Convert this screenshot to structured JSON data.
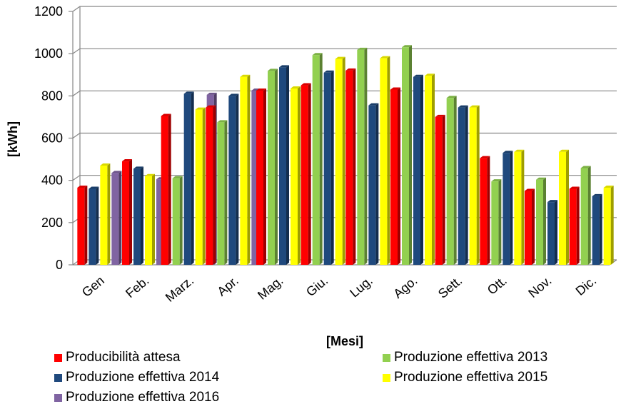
{
  "chart_data": {
    "type": "bar",
    "three_d": true,
    "categories": [
      "Gen",
      "Feb.",
      "Marz.",
      "Apr.",
      "Mag.",
      "Giu.",
      "Lug.",
      "Ago.",
      "Sett.",
      "Ott.",
      "Nov.",
      "Dic."
    ],
    "series": [
      {
        "name": "Producibilità attesa",
        "color": "#ff0000",
        "values": [
          365,
          490,
          705,
          745,
          825,
          850,
          920,
          830,
          700,
          505,
          350,
          360
        ]
      },
      {
        "name": "Produzione effettiva 2013",
        "color": "#92d050",
        "values": [
          null,
          null,
          410,
          675,
          918,
          993,
          1018,
          1030,
          790,
          395,
          403,
          458
        ]
      },
      {
        "name": "Produzione effettiva 2014",
        "color": "#1f497d",
        "values": [
          360,
          455,
          810,
          800,
          935,
          910,
          755,
          890,
          745,
          530,
          297,
          325
        ]
      },
      {
        "name": "Produzione effettiva 2015",
        "color": "#ffff00",
        "values": [
          470,
          420,
          735,
          890,
          835,
          975,
          978,
          895,
          745,
          535,
          535,
          365
        ]
      },
      {
        "name": "Produzione effettiva 2016",
        "color": "#8064a2",
        "values": [
          435,
          405,
          805,
          825,
          null,
          null,
          null,
          null,
          null,
          null,
          null,
          null
        ]
      }
    ],
    "ylim": [
      0,
      1200
    ],
    "yticks": [
      "0",
      "200",
      "400",
      "600",
      "800",
      "1000",
      "1200"
    ],
    "ylabel": "[kWh]",
    "xlabel": "[Mesi]",
    "grid": true,
    "legend_position": "bottom"
  }
}
